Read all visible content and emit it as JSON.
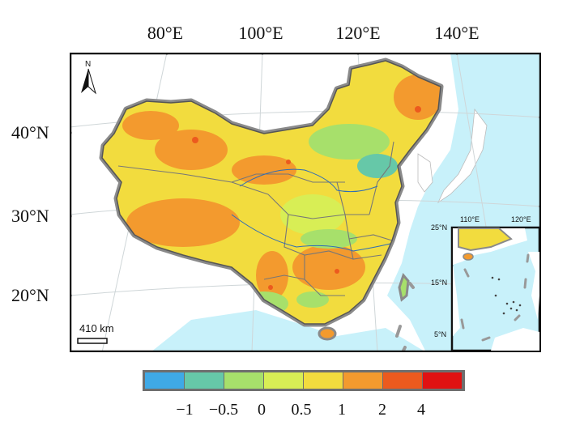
{
  "longitude_labels": [
    "80°E",
    "100°E",
    "120°E",
    "140°E"
  ],
  "latitude_labels": [
    "40°N",
    "30°N",
    "20°N"
  ],
  "north_arrow": {
    "label": "N",
    "icon": "north-arrow-icon"
  },
  "scale_bar": {
    "label": "410 km"
  },
  "inset": {
    "lon_labels": [
      "110°E",
      "120°E"
    ],
    "lat_labels": [
      "25°N",
      "15°N",
      "5°N"
    ]
  },
  "legend": {
    "colors": [
      "#3fa9e6",
      "#66c8a8",
      "#a7e06b",
      "#d8ee55",
      "#f2dc3e",
      "#f39a2e",
      "#ec5a1e",
      "#e01212"
    ],
    "tick_labels": [
      "−1",
      "−0.5",
      "0",
      "0.5",
      "1",
      "2",
      "4"
    ]
  },
  "colors": {
    "sea": "#c8f1fa",
    "land": "#ffffff",
    "frame": "#111111",
    "border_shadow": "#8a8a8a"
  }
}
